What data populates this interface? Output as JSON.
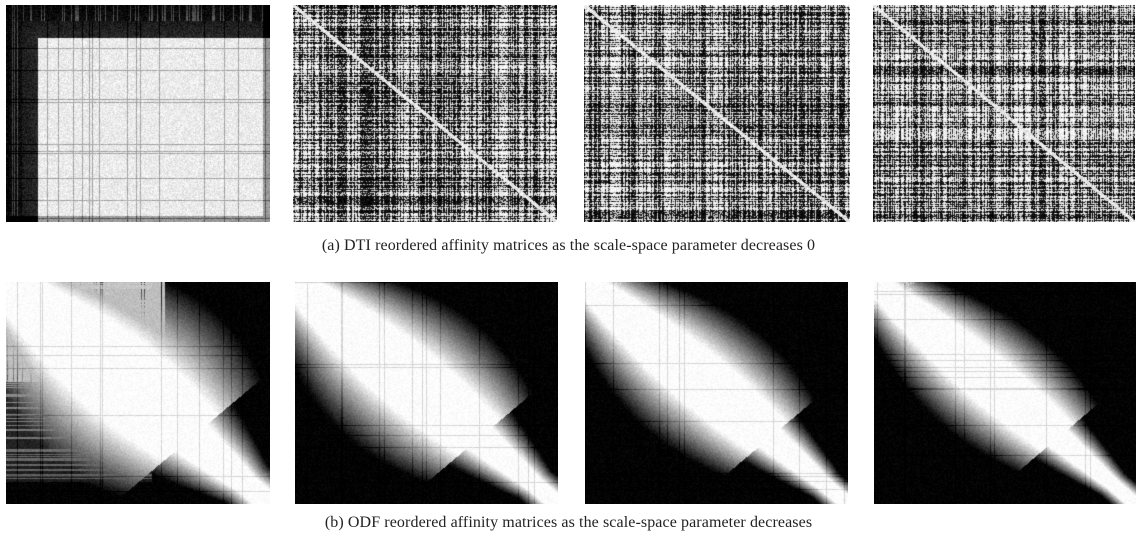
{
  "figure": {
    "row_a": {
      "caption": "(a)  DTI reordered affinity matrices as the scale-space parameter decreases 0",
      "panels": [
        {
          "name": "dti-matrix-1",
          "style": "block-dark-corner"
        },
        {
          "name": "dti-matrix-2",
          "style": "fine-texture"
        },
        {
          "name": "dti-matrix-3",
          "style": "fine-texture"
        },
        {
          "name": "dti-matrix-4",
          "style": "fine-texture"
        }
      ]
    },
    "row_b": {
      "caption": "(b)  ODF reordered affinity matrices as the scale-space parameter decreases",
      "panels": [
        {
          "name": "odf-matrix-1",
          "style": "diagonal-band-wide"
        },
        {
          "name": "odf-matrix-2",
          "style": "diagonal-band-medium"
        },
        {
          "name": "odf-matrix-3",
          "style": "diagonal-band-narrow"
        },
        {
          "name": "odf-matrix-4",
          "style": "diagonal-band-narrower"
        }
      ]
    }
  }
}
